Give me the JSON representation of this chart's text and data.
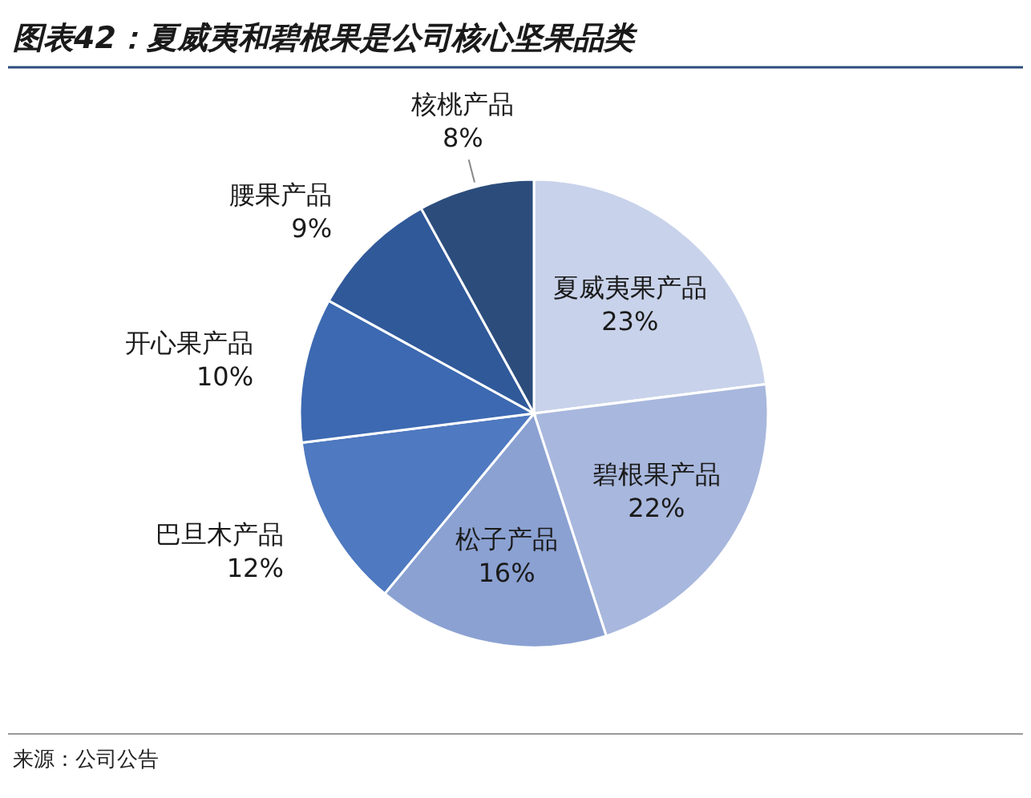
{
  "chart_data": {
    "type": "pie",
    "title": "图表42：夏威夷和碧根果是公司核心坚果品类",
    "categories": [
      "夏威夷果产品",
      "碧根果产品",
      "松子产品",
      "巴旦木产品",
      "开心果产品",
      "腰果产品",
      "核桃产品"
    ],
    "values": [
      23,
      22,
      16,
      12,
      10,
      9,
      8
    ],
    "colors": [
      "#c8d2ea",
      "#a8b7dd",
      "#8ba1d2",
      "#4f79c0",
      "#3c69b1",
      "#30599a",
      "#2c4d7c"
    ],
    "value_labels": [
      "23%",
      "22%",
      "16%",
      "12%",
      "10%",
      "9%",
      "8%"
    ],
    "annotations": [
      "来源：公司公告"
    ]
  }
}
